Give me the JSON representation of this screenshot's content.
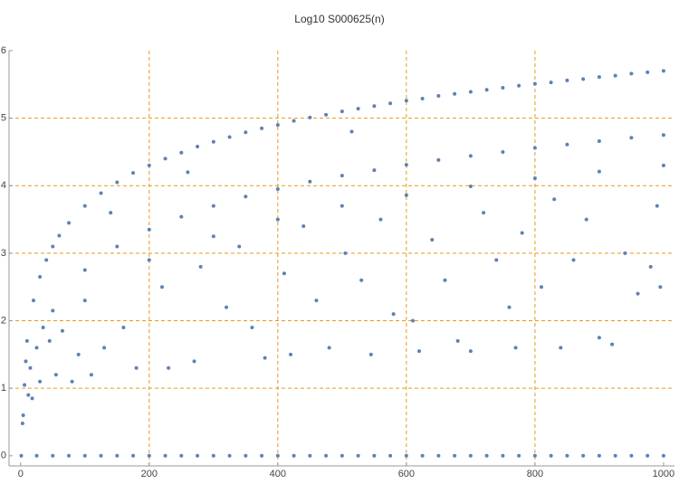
{
  "chart_data": {
    "type": "scatter",
    "title": "Log10 S000625(n)",
    "xlim": [
      -18,
      1017
    ],
    "ylim": [
      -0.15,
      6
    ],
    "xticks": [
      0,
      200,
      400,
      600,
      800,
      1000
    ],
    "yticks": [
      0,
      1,
      2,
      3,
      4,
      5,
      6
    ],
    "grid": true,
    "grid_color": "#e69a1a",
    "color": "#5e81b5",
    "series": [
      {
        "name": null,
        "color": "#5e81b5",
        "x": [
          10,
          20,
          30,
          40,
          50,
          60,
          75,
          100,
          125,
          150,
          175,
          200,
          225,
          250,
          275,
          300,
          325,
          350,
          375,
          400,
          425,
          450,
          475,
          500,
          525,
          550,
          575,
          600,
          625,
          650,
          675,
          700,
          725,
          750,
          775,
          800,
          825,
          850,
          875,
          900,
          925,
          950,
          975,
          1000,
          50,
          100,
          150,
          200,
          250,
          300,
          350,
          400,
          450,
          500,
          550,
          600,
          650,
          700,
          750,
          800,
          850,
          900,
          950,
          1000,
          100,
          200,
          300,
          400,
          500,
          600,
          700,
          800,
          900,
          1000,
          3,
          4,
          6,
          8,
          12,
          15,
          18,
          25,
          30,
          35,
          45,
          55,
          65,
          80,
          90,
          110,
          130,
          140,
          160,
          180,
          220,
          230,
          260,
          270,
          280,
          320,
          340,
          360,
          380,
          410,
          420,
          440,
          460,
          480,
          505,
          515,
          530,
          545,
          560,
          580,
          610,
          620,
          640,
          660,
          680,
          700,
          720,
          740,
          760,
          770,
          780,
          810,
          830,
          840,
          860,
          880,
          900,
          920,
          940,
          960,
          980,
          990,
          995,
          1,
          25,
          50,
          75,
          100,
          125,
          150,
          175,
          200,
          225,
          250,
          275,
          300,
          325,
          350,
          375,
          400,
          425,
          450,
          475,
          500,
          525,
          550,
          575,
          600,
          625,
          650,
          675,
          700,
          725,
          750,
          775,
          800,
          825,
          850,
          875,
          900,
          925,
          950,
          975,
          1000
        ],
        "values": [
          1.7,
          2.3,
          2.65,
          2.9,
          3.1,
          3.26,
          3.45,
          3.7,
          3.89,
          4.05,
          4.19,
          4.3,
          4.4,
          4.49,
          4.58,
          4.65,
          4.72,
          4.79,
          4.85,
          4.9,
          4.96,
          5.01,
          5.05,
          5.1,
          5.14,
          5.18,
          5.22,
          5.26,
          5.29,
          5.33,
          5.36,
          5.39,
          5.42,
          5.45,
          5.48,
          5.51,
          5.53,
          5.56,
          5.58,
          5.61,
          5.63,
          5.66,
          5.68,
          5.7,
          2.15,
          2.75,
          3.1,
          3.35,
          3.54,
          3.7,
          3.84,
          3.95,
          4.06,
          4.15,
          4.23,
          4.31,
          4.38,
          4.44,
          4.5,
          4.56,
          4.61,
          4.66,
          4.71,
          4.75,
          2.3,
          2.9,
          3.25,
          3.5,
          3.7,
          3.86,
          3.99,
          4.11,
          4.21,
          4.3,
          0.48,
          0.6,
          1.05,
          1.4,
          0.9,
          1.3,
          0.85,
          1.6,
          1.1,
          1.9,
          1.7,
          1.2,
          1.85,
          1.1,
          1.5,
          1.2,
          1.6,
          3.6,
          1.9,
          1.3,
          2.5,
          1.3,
          4.2,
          1.4,
          2.8,
          2.2,
          3.1,
          1.9,
          1.45,
          2.7,
          1.5,
          3.4,
          2.3,
          1.6,
          3.0,
          4.8,
          2.6,
          1.5,
          3.5,
          2.1,
          2.0,
          1.55,
          3.2,
          2.6,
          1.7,
          1.55,
          3.6,
          2.9,
          2.2,
          1.6,
          3.3,
          2.5,
          3.8,
          1.6,
          2.9,
          3.5,
          1.75,
          1.65,
          3.0,
          2.4,
          2.8,
          3.7,
          2.5,
          0,
          0,
          0,
          0,
          0,
          0,
          0,
          0,
          0,
          0,
          0,
          0,
          0,
          0,
          0,
          0,
          0,
          0,
          0,
          0,
          0,
          0,
          0,
          0,
          0,
          0,
          0,
          0,
          0,
          0,
          0,
          0,
          0,
          0,
          0,
          0,
          0,
          0,
          0,
          0,
          0
        ]
      }
    ]
  }
}
